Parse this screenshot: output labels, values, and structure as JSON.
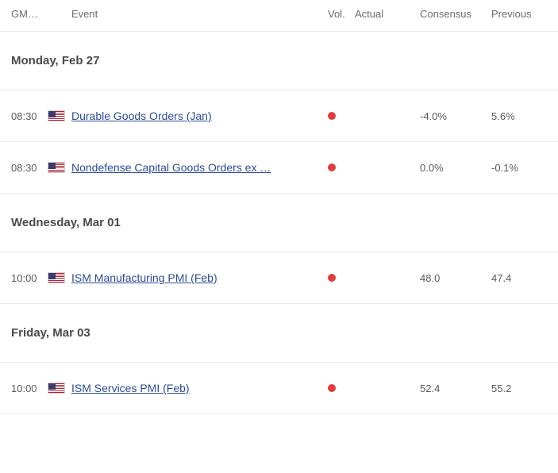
{
  "columns": {
    "time": "GM…",
    "event": "Event",
    "vol": "Vol.",
    "actual": "Actual",
    "consensus": "Consensus",
    "previous": "Previous"
  },
  "colors": {
    "dot": "#e03c3c",
    "link": "#2c4b9b",
    "text": "#5a5a5a",
    "heading": "#4a4a4a",
    "border": "#e8e8e8",
    "background": "#ffffff"
  },
  "rows": [
    {
      "type": "day",
      "label": "Monday, Feb 27"
    },
    {
      "type": "event",
      "time": "08:30",
      "flag": "us",
      "name": "Durable Goods Orders (Jan)",
      "vol": "high",
      "actual": "",
      "consensus": "-4.0%",
      "previous": "5.6%"
    },
    {
      "type": "event",
      "time": "08:30",
      "flag": "us",
      "name": "Nondefense Capital Goods Orders ex …",
      "vol": "high",
      "actual": "",
      "consensus": "0.0%",
      "previous": "-0.1%"
    },
    {
      "type": "day",
      "label": "Wednesday, Mar 01"
    },
    {
      "type": "event",
      "time": "10:00",
      "flag": "us",
      "name": "ISM Manufacturing PMI (Feb)",
      "vol": "high",
      "actual": "",
      "consensus": "48.0",
      "previous": "47.4"
    },
    {
      "type": "day",
      "label": "Friday, Mar 03"
    },
    {
      "type": "event",
      "time": "10:00",
      "flag": "us",
      "name": "ISM Services PMI (Feb)",
      "vol": "high",
      "actual": "",
      "consensus": "52.4",
      "previous": "55.2"
    }
  ]
}
